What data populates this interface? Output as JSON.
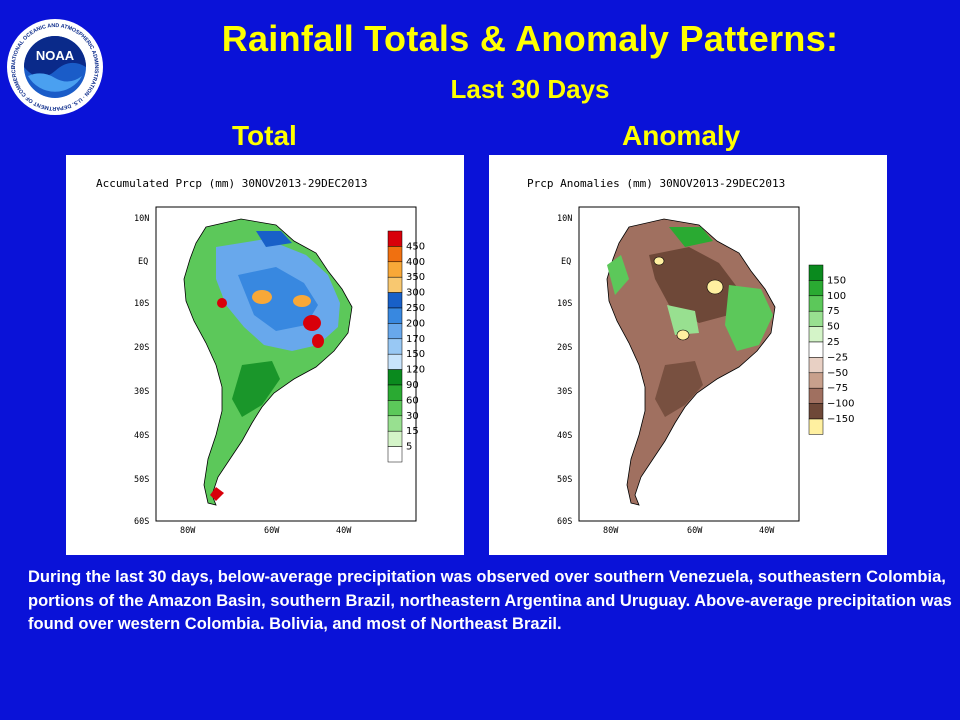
{
  "header": {
    "title": "Rainfall Totals & Anomaly Patterns:",
    "subtitle": "Last 30 Days",
    "logo_text": "NOAA",
    "logo_ring_text": "NATIONAL OCEANIC AND ATMOSPHERIC ADMINISTRATION · U.S. DEPARTMENT OF COMMERCE"
  },
  "panels": {
    "total": {
      "label": "Total",
      "map_title": "Accumulated Prcp (mm) 30NOV2013-29DEC2013",
      "legend": [
        "450",
        "400",
        "350",
        "300",
        "250",
        "200",
        "170",
        "150",
        "120",
        "90",
        "60",
        "30",
        "15",
        "5"
      ],
      "legend_colors": [
        "#d8000a",
        "#f07010",
        "#f8a838",
        "#f8c870",
        "#1860c8",
        "#3888e0",
        "#68a8ec",
        "#98c8f4",
        "#c8e4fc",
        "#0a8a1e",
        "#2aaa32",
        "#5cc85a",
        "#98e090",
        "#d4f4c8",
        "#ffffff"
      ]
    },
    "anomaly": {
      "label": "Anomaly",
      "map_title": "Prcp Anomalies (mm) 30NOV2013-29DEC2013",
      "legend": [
        "150",
        "100",
        "75",
        "50",
        "25",
        "−25",
        "−50",
        "−75",
        "−100",
        "−150"
      ],
      "legend_colors": [
        "#0a8a1e",
        "#2aaa32",
        "#5cc85a",
        "#98e090",
        "#d4f4c8",
        "#ffffff",
        "#e8d0c4",
        "#c8a08c",
        "#a07060",
        "#6e4838",
        "#fff0a0"
      ]
    },
    "lat_labels": [
      "10N",
      "EQ",
      "10S",
      "20S",
      "30S",
      "40S",
      "50S",
      "60S"
    ],
    "lon_labels": [
      "80W",
      "60W",
      "40W"
    ]
  },
  "description": "During the last 30 days, below-average precipitation was observed over southern Venezuela, southeastern Colombia, portions of the Amazon Basin, southern Brazil, northeastern Argentina and Uruguay.  Above-average precipitation was found over western Colombia. Bolivia, and most of Northeast Brazil."
}
